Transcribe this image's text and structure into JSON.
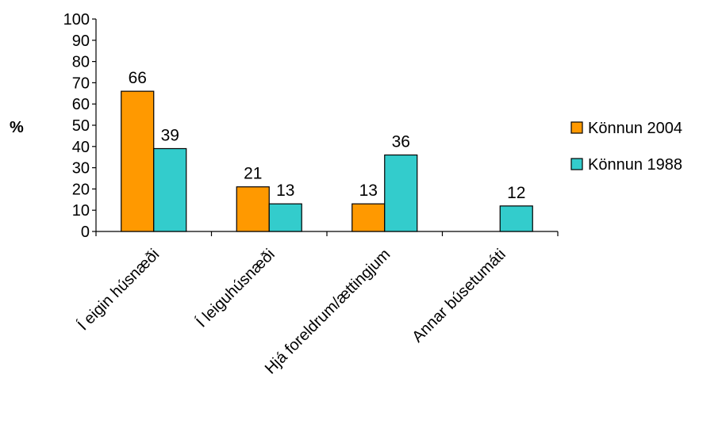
{
  "chart_data": {
    "type": "bar",
    "ylabel": "%",
    "xlabel": "",
    "ylim": [
      0,
      100
    ],
    "yticks": [
      0,
      10,
      20,
      30,
      40,
      50,
      60,
      70,
      80,
      90,
      100
    ],
    "categories": [
      "Í eigin húsnæði",
      "Í leiguhúsnæði",
      "Hjá foreldrum/ættingjum",
      "Annar búsetumáti"
    ],
    "series": [
      {
        "name": "Könnun 2004",
        "color": "#ff9900",
        "values": [
          66,
          21,
          13,
          null
        ],
        "labels": [
          "66",
          "21",
          "13",
          ""
        ]
      },
      {
        "name": "Könnun 1988",
        "color": "#33cccc",
        "values": [
          39,
          13,
          36,
          12
        ],
        "labels": [
          "39",
          "13",
          "36",
          "12"
        ]
      }
    ],
    "legend_position": "right",
    "grid": false
  }
}
